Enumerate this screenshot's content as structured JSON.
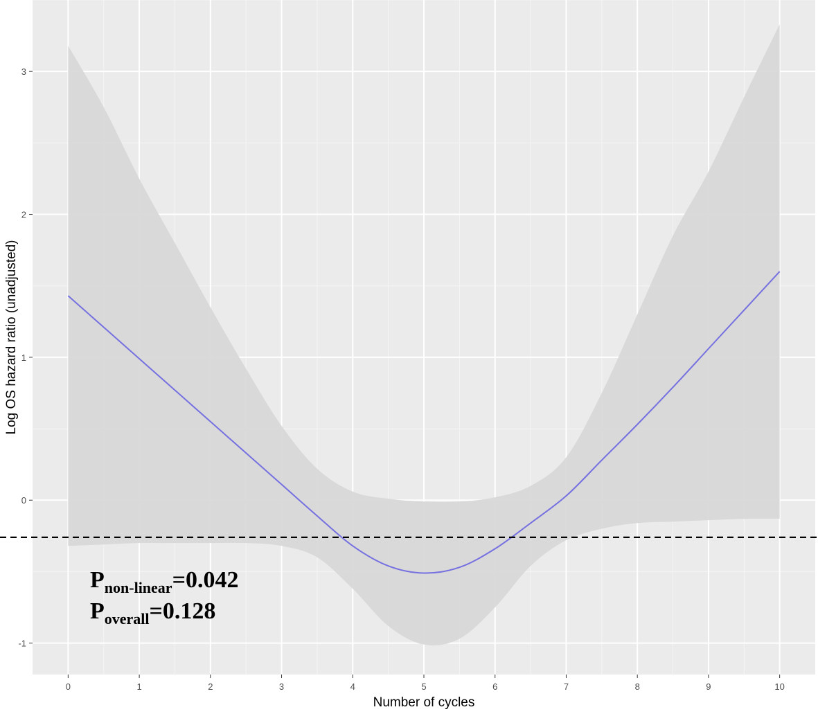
{
  "chart_data": {
    "type": "line",
    "xlabel": "Number of cycles",
    "ylabel": "Log OS hazard ratio (unadjusted)",
    "xlim": [
      -0.5,
      10.5
    ],
    "ylim": [
      -1.22,
      3.5
    ],
    "x_ticks": [
      0,
      1,
      2,
      3,
      4,
      5,
      6,
      7,
      8,
      9,
      10
    ],
    "y_ticks": [
      -1,
      0,
      1,
      2,
      3
    ],
    "grid": true,
    "panel_background": "#ebebeb",
    "series": [
      {
        "x": [
          0,
          0.5,
          1,
          1.5,
          2,
          2.5,
          3,
          3.5,
          4,
          4.5,
          5,
          5.5,
          6,
          6.5,
          7,
          7.5,
          8,
          8.5,
          9,
          9.5,
          10
        ],
        "values": [
          1.43,
          1.21,
          0.99,
          0.77,
          0.55,
          0.33,
          0.11,
          -0.11,
          -0.32,
          -0.46,
          -0.51,
          -0.47,
          -0.34,
          -0.16,
          0.03,
          0.28,
          0.53,
          0.79,
          1.06,
          1.33,
          1.6
        ],
        "color": "#7570e0"
      }
    ],
    "confidence_band": {
      "x": [
        0,
        0.5,
        1,
        1.5,
        2,
        2.5,
        3,
        3.5,
        4,
        4.5,
        5,
        5.5,
        6,
        6.5,
        7,
        7.5,
        8,
        8.5,
        9,
        9.5,
        10
      ],
      "upper": [
        3.18,
        2.75,
        2.25,
        1.8,
        1.35,
        0.92,
        0.52,
        0.22,
        0.06,
        0.01,
        -0.01,
        -0.01,
        0.02,
        0.1,
        0.3,
        0.75,
        1.3,
        1.85,
        2.3,
        2.82,
        3.33
      ],
      "lower": [
        -0.32,
        -0.31,
        -0.3,
        -0.3,
        -0.3,
        -0.3,
        -0.32,
        -0.4,
        -0.62,
        -0.88,
        -1.01,
        -0.97,
        -0.75,
        -0.46,
        -0.28,
        -0.2,
        -0.16,
        -0.15,
        -0.14,
        -0.13,
        -0.13
      ],
      "color": "#d9d8d9"
    },
    "reference_line": {
      "y": -0.26,
      "style": "dashed",
      "color": "#000000"
    },
    "annotations": {
      "p1": {
        "letter": "P",
        "subscript": "non-linear",
        "value": "=0.042"
      },
      "p2": {
        "letter": "P",
        "subscript": "overall",
        "value": "=0.128"
      }
    }
  }
}
